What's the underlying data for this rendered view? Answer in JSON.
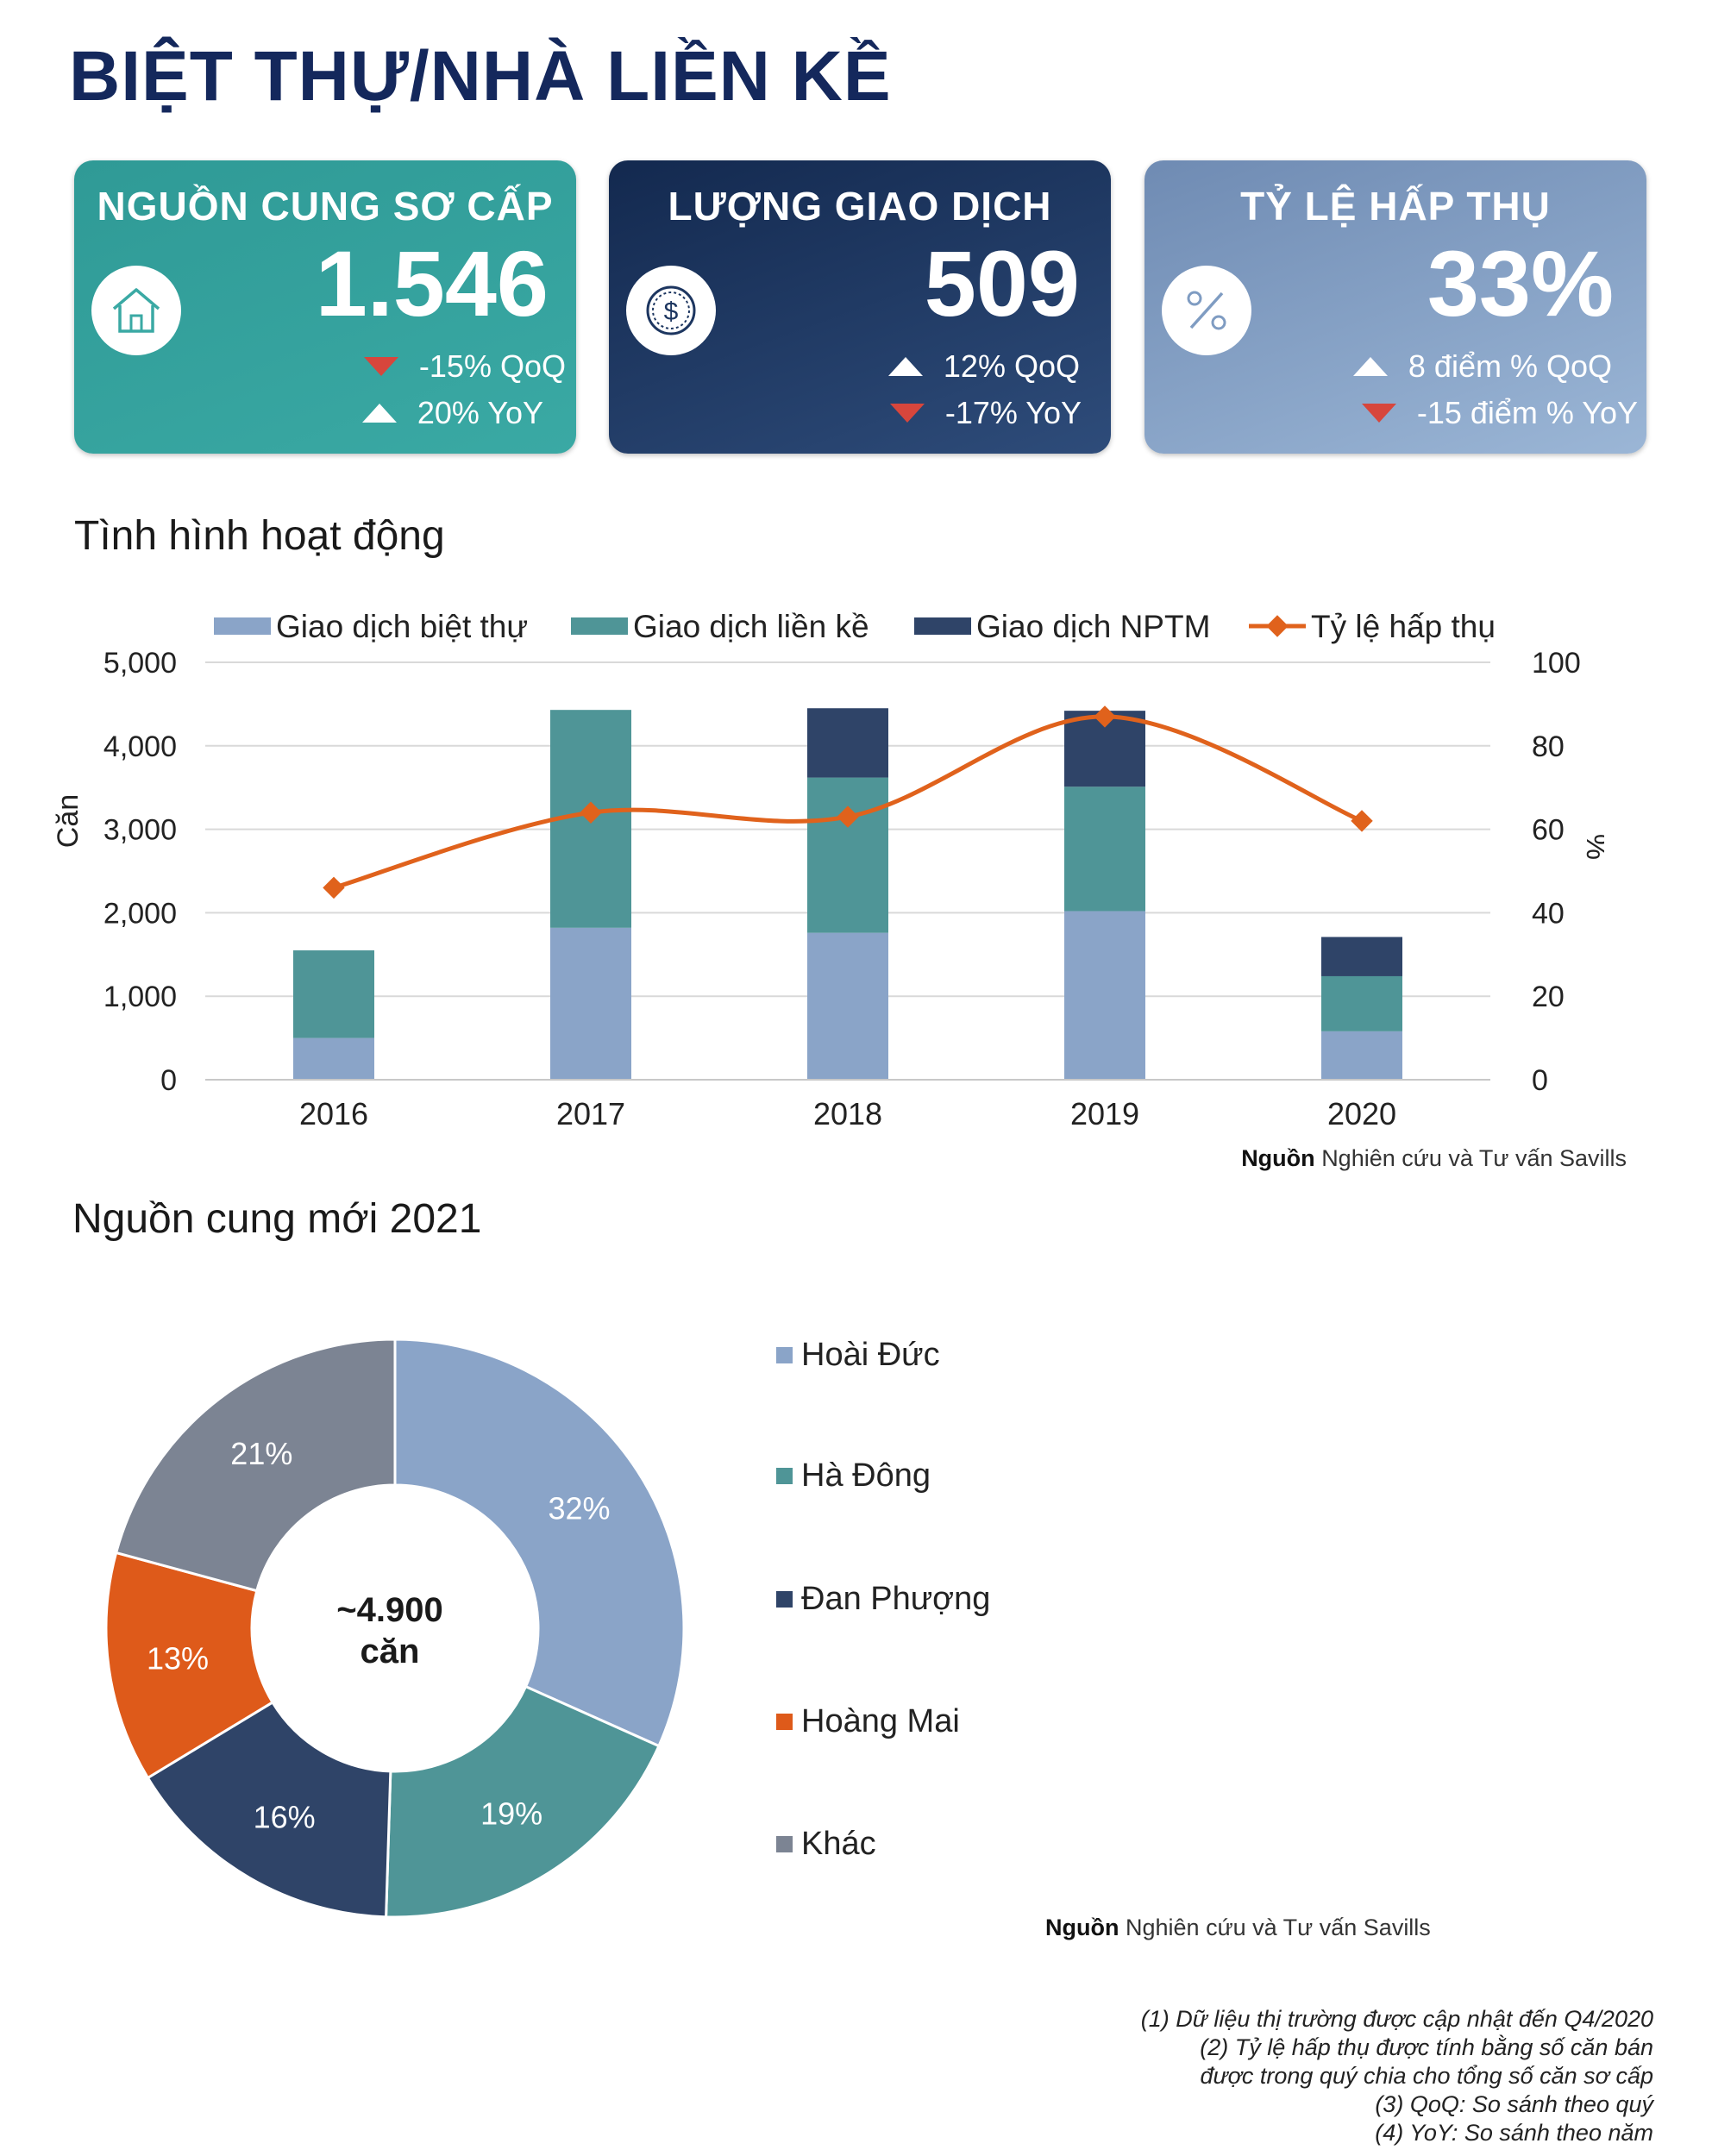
{
  "page": {
    "title": "BIỆT THỰ/NHÀ LIỀN KỀ"
  },
  "kpis": [
    {
      "title": "NGUỒN CUNG SƠ CẤP",
      "value": "1.546",
      "icon": "house-icon",
      "changes": [
        {
          "direction": "down",
          "text": "-15% QoQ"
        },
        {
          "direction": "up",
          "text": "20% YoY"
        }
      ]
    },
    {
      "title": "LƯỢNG GIAO DỊCH",
      "value": "509",
      "icon": "dollar-coin-icon",
      "changes": [
        {
          "direction": "up",
          "text": "12% QoQ"
        },
        {
          "direction": "down",
          "text": "-17% YoY"
        }
      ]
    },
    {
      "title": "TỶ LỆ HẤP THỤ",
      "value": "33%",
      "icon": "percent-icon",
      "changes": [
        {
          "direction": "up",
          "text": "8 điểm % QoQ"
        },
        {
          "direction": "down",
          "text": "-15 điểm % YoY"
        }
      ]
    }
  ],
  "sections": {
    "activity_title": "Tình hình hoạt động",
    "supply_title": "Nguồn cung mới 2021"
  },
  "sources": [
    {
      "label": "Nguồn",
      "text": "Nghiên cứu và Tư vấn Savills"
    },
    {
      "label": "Nguồn",
      "text": "Nghiên cứu và Tư vấn Savills"
    }
  ],
  "colors": {
    "villa": "#8aa4c8",
    "townhouse": "#4f9597",
    "nptm": "#2f4468",
    "absorption": "#e0621c",
    "hoang_mai": "#de5a1a",
    "khac": "#7c8493"
  },
  "chart_data": [
    {
      "type": "bar",
      "stacked": true,
      "categories": [
        "2016",
        "2017",
        "2018",
        "2019",
        "2020"
      ],
      "series": [
        {
          "name": "Giao dịch biệt thự",
          "type": "bar",
          "axis": "left",
          "values": [
            500,
            1820,
            1760,
            2020,
            580
          ]
        },
        {
          "name": "Giao dịch liền kề",
          "type": "bar",
          "axis": "left",
          "values": [
            1050,
            2610,
            1860,
            1490,
            660
          ]
        },
        {
          "name": "Giao dịch NPTM",
          "type": "bar",
          "axis": "left",
          "values": [
            0,
            0,
            830,
            910,
            470
          ]
        },
        {
          "name": "Tỷ lệ hấp thụ",
          "type": "line",
          "axis": "right",
          "values": [
            46,
            64,
            63,
            87,
            62
          ]
        }
      ],
      "ylabel": "Căn",
      "y2label": "%",
      "ylim": [
        0,
        5000
      ],
      "y2lim": [
        0,
        100
      ],
      "yticks": [
        "0",
        "1,000",
        "2,000",
        "3,000",
        "4,000",
        "5,000"
      ],
      "y2ticks": [
        "0",
        "20",
        "40",
        "60",
        "80",
        "100"
      ],
      "grid": true,
      "legend": "top"
    },
    {
      "type": "pie",
      "donut": true,
      "center_label": [
        "~4.900",
        "căn"
      ],
      "labels": [
        "Hoài Đức",
        "Hà Đông",
        "Đan Phượng",
        "Hoàng Mai",
        "Khác"
      ],
      "values": [
        32,
        19,
        16,
        13,
        21
      ],
      "value_labels": [
        "32%",
        "19%",
        "16%",
        "13%",
        "21%"
      ],
      "legend": "right"
    }
  ],
  "footnotes": [
    "(1)  Dữ liệu thị trường được cập nhật đến Q4/2020",
    "(2)  Tỷ lệ hấp thụ được tính bằng số căn bán",
    "được trong quý chia cho tổng số căn sơ cấp",
    "(3)  QoQ: So sánh theo quý",
    "(4)  YoY: So sánh theo năm"
  ]
}
